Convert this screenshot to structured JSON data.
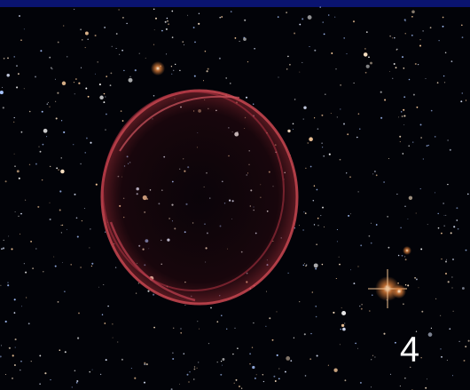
{
  "caption": "4"
}
